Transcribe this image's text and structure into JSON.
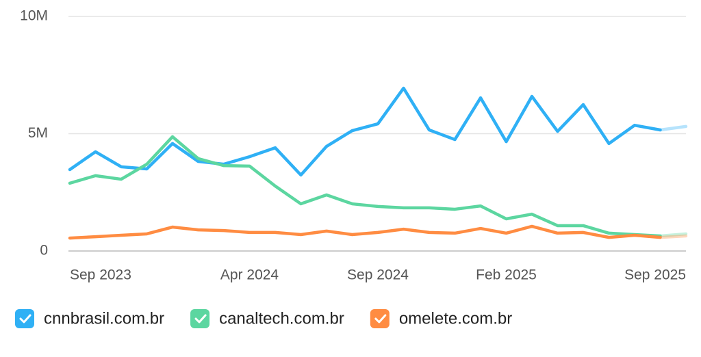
{
  "chart_data": {
    "type": "line",
    "categories": [
      "Sep 2023",
      null,
      null,
      null,
      null,
      null,
      null,
      "Apr 2024",
      null,
      null,
      null,
      null,
      "Sep 2024",
      null,
      null,
      null,
      null,
      "Feb 2025",
      null,
      null,
      null,
      null,
      null,
      null,
      "Sep 2025"
    ],
    "series": [
      {
        "name": "cnnbrasil.com.br",
        "color": "#2fb0f5",
        "values": [
          3470000,
          4230000,
          3590000,
          3500000,
          4580000,
          3820000,
          3700000,
          4020000,
          4400000,
          3240000,
          4460000,
          5130000,
          5420000,
          6940000,
          5160000,
          4750000,
          6530000,
          4660000,
          6590000,
          5100000,
          6240000,
          4580000,
          5360000,
          5160000,
          5310000
        ]
      },
      {
        "name": "canaltech.com.br",
        "color": "#5cd6a0",
        "values": [
          2890000,
          3210000,
          3060000,
          3700000,
          4870000,
          3940000,
          3640000,
          3620000,
          2770000,
          2010000,
          2390000,
          2010000,
          1900000,
          1840000,
          1840000,
          1780000,
          1920000,
          1370000,
          1570000,
          1080000,
          1080000,
          760000,
          700000,
          640000,
          730000
        ]
      },
      {
        "name": "omelete.com.br",
        "color": "#ff8c42",
        "values": [
          550000,
          610000,
          670000,
          730000,
          1020000,
          900000,
          870000,
          790000,
          790000,
          700000,
          850000,
          700000,
          790000,
          930000,
          790000,
          760000,
          960000,
          760000,
          1050000,
          760000,
          790000,
          580000,
          670000,
          580000,
          640000
        ]
      }
    ],
    "ylim": [
      0,
      10000000
    ],
    "yticks": [
      0,
      {
        "value": 5000000,
        "label": "5M"
      },
      {
        "value": 10000000,
        "label": "10M"
      }
    ],
    "grid": true
  }
}
